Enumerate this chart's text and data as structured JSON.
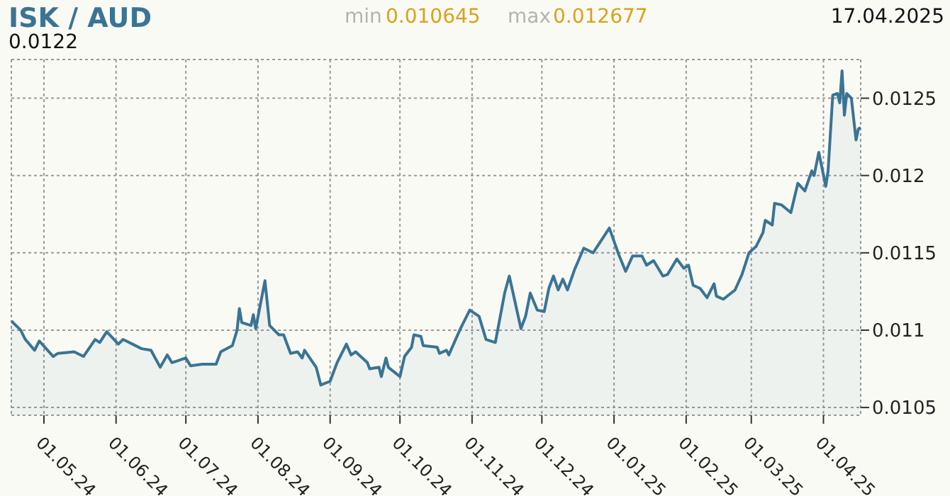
{
  "chart_data": {
    "type": "area",
    "title": "ISK / AUD",
    "annotations": [
      "min",
      "0.010645",
      "max",
      "0.012677",
      "17.04.2025",
      "0.0122"
    ],
    "x": [
      "2024-04-17",
      "2024-04-21",
      "2024-04-23",
      "2024-04-27",
      "2024-04-29",
      "2024-05-05",
      "2024-05-07",
      "2024-05-14",
      "2024-05-18",
      "2024-05-23",
      "2024-05-25",
      "2024-05-28",
      "2024-06-02",
      "2024-06-04",
      "2024-06-12",
      "2024-06-16",
      "2024-06-20",
      "2024-06-23",
      "2024-06-25",
      "2024-07-01",
      "2024-07-03",
      "2024-07-08",
      "2024-07-14",
      "2024-07-16",
      "2024-07-21",
      "2024-07-23",
      "2024-07-24",
      "2024-07-25",
      "2024-07-29",
      "2024-07-30",
      "2024-07-31",
      "2024-08-04",
      "2024-08-06",
      "2024-08-10",
      "2024-08-12",
      "2024-08-15",
      "2024-08-18",
      "2024-08-20",
      "2024-08-21",
      "2024-08-26",
      "2024-08-28",
      "2024-09-01",
      "2024-09-04",
      "2024-09-08",
      "2024-09-10",
      "2024-09-12",
      "2024-09-17",
      "2024-09-18",
      "2024-09-22",
      "2024-09-23",
      "2024-09-25",
      "2024-09-26",
      "2024-10-01",
      "2024-10-03",
      "2024-10-06",
      "2024-10-07",
      "2024-10-10",
      "2024-10-11",
      "2024-10-17",
      "2024-10-18",
      "2024-10-21",
      "2024-10-22",
      "2024-10-27",
      "2024-10-31",
      "2024-11-04",
      "2024-11-07",
      "2024-11-11",
      "2024-11-15",
      "2024-11-17",
      "2024-11-22",
      "2024-11-24",
      "2024-11-26",
      "2024-11-29",
      "2024-12-02",
      "2024-12-04",
      "2024-12-06",
      "2024-12-08",
      "2024-12-10",
      "2024-12-12",
      "2024-12-15",
      "2024-12-19",
      "2024-12-23",
      "2024-12-30",
      "2025-01-03",
      "2025-01-06",
      "2025-01-09",
      "2025-01-13",
      "2025-01-15",
      "2025-01-18",
      "2025-01-22",
      "2025-01-24",
      "2025-01-28",
      "2025-01-31",
      "2025-02-02",
      "2025-02-04",
      "2025-02-07",
      "2025-02-10",
      "2025-02-13",
      "2025-02-14",
      "2025-02-17",
      "2025-02-22",
      "2025-02-25",
      "2025-02-28",
      "2025-03-03",
      "2025-03-06",
      "2025-03-07",
      "2025-03-10",
      "2025-03-11",
      "2025-03-14",
      "2025-03-18",
      "2025-03-21",
      "2025-03-24",
      "2025-03-27",
      "2025-03-28",
      "2025-03-30",
      "2025-04-02",
      "2025-04-03",
      "2025-04-05",
      "2025-04-07",
      "2025-04-08",
      "2025-04-09",
      "2025-04-10",
      "2025-04-11",
      "2025-04-13",
      "2025-04-15",
      "2025-04-16",
      "2025-04-17"
    ],
    "series": [
      {
        "color": "#3a7494",
        "values": [
          0.01106,
          0.011,
          0.01094,
          0.01087,
          0.01093,
          0.01083,
          0.01085,
          0.01086,
          0.01083,
          0.01094,
          0.01092,
          0.01099,
          0.01091,
          0.01094,
          0.01088,
          0.01087,
          0.01076,
          0.01084,
          0.01079,
          0.01082,
          0.01077,
          0.01078,
          0.01078,
          0.01086,
          0.0109,
          0.011,
          0.01114,
          0.01105,
          0.01103,
          0.0111,
          0.01101,
          0.01132,
          0.01103,
          0.01097,
          0.01097,
          0.01085,
          0.01086,
          0.01082,
          0.01087,
          0.01076,
          0.010645,
          0.01067,
          0.01079,
          0.01091,
          0.01084,
          0.01086,
          0.01079,
          0.01075,
          0.01076,
          0.0107,
          0.01082,
          0.01076,
          0.0107,
          0.01083,
          0.01089,
          0.01097,
          0.01096,
          0.0109,
          0.01089,
          0.01085,
          0.01087,
          0.01084,
          0.01101,
          0.01113,
          0.01109,
          0.01094,
          0.01092,
          0.01124,
          0.01135,
          0.01101,
          0.01109,
          0.01124,
          0.01113,
          0.01112,
          0.01127,
          0.01135,
          0.01126,
          0.01133,
          0.01126,
          0.01139,
          0.01153,
          0.0115,
          0.01166,
          0.01149,
          0.01138,
          0.01148,
          0.01148,
          0.01142,
          0.01145,
          0.01135,
          0.01136,
          0.01146,
          0.0114,
          0.01142,
          0.01129,
          0.01127,
          0.01121,
          0.0113,
          0.01122,
          0.0112,
          0.01126,
          0.01136,
          0.0115,
          0.01154,
          0.01163,
          0.01171,
          0.01168,
          0.01182,
          0.01181,
          0.01176,
          0.01195,
          0.0119,
          0.01203,
          0.012,
          0.01215,
          0.01193,
          0.01203,
          0.01252,
          0.01253,
          0.01247,
          0.012677,
          0.01239,
          0.01253,
          0.0125,
          0.01223,
          0.0123,
          0.01231
        ]
      }
    ],
    "xlim": [
      "2024-04-17",
      "2025-04-17"
    ],
    "xticks": [
      {
        "value": "2024-05-01",
        "label": "01.05.24"
      },
      {
        "value": "2024-06-01",
        "label": "01.06.24"
      },
      {
        "value": "2024-07-01",
        "label": "01.07.24"
      },
      {
        "value": "2024-08-01",
        "label": "01.08.24"
      },
      {
        "value": "2024-09-01",
        "label": "01.09.24"
      },
      {
        "value": "2024-10-01",
        "label": "01.10.24"
      },
      {
        "value": "2024-11-01",
        "label": "01.11.24"
      },
      {
        "value": "2024-12-01",
        "label": "01.12.24"
      },
      {
        "value": "2025-01-01",
        "label": "01.01.25"
      },
      {
        "value": "2025-02-01",
        "label": "01.02.25"
      },
      {
        "value": "2025-03-01",
        "label": "01.03.25"
      },
      {
        "value": "2025-04-01",
        "label": "01.04.25"
      }
    ],
    "ylim": [
      0.01045,
      0.01275
    ],
    "yticks": [
      0.0105,
      0.011,
      0.0115,
      0.012,
      0.0125
    ],
    "grid": true
  }
}
